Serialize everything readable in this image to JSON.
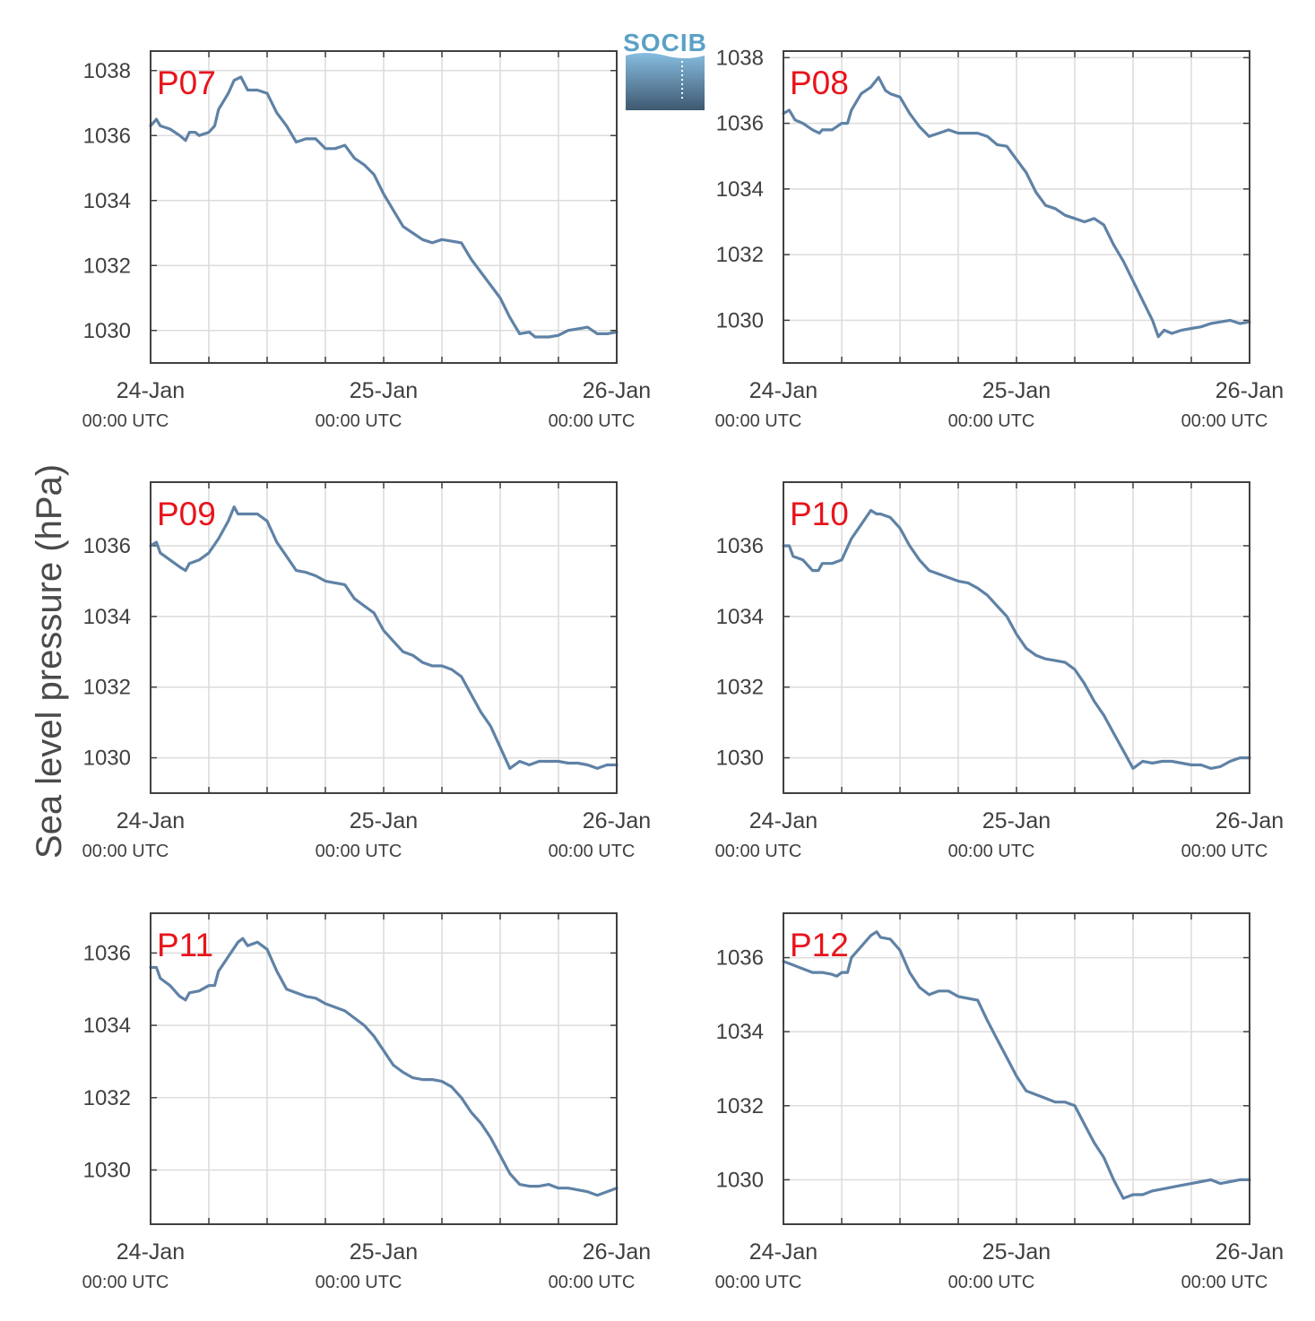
{
  "figure": {
    "ylabel": "Sea level pressure (hPa)",
    "logo_text": "SOCIB"
  },
  "colors": {
    "line": "#5f82a6",
    "label": "#e8141c",
    "grid": "#dcdcdc",
    "axis": "#404040",
    "logo_text": "#5aa0c6",
    "logo_top": "#86bde0",
    "logo_bottom": "#3f5870"
  },
  "chart_data": [
    {
      "type": "line",
      "label": "P07",
      "xlim": [
        0,
        48
      ],
      "ylim": [
        1029,
        1038.6
      ],
      "yticks": [
        1030,
        1032,
        1034,
        1036,
        1038
      ],
      "xticks": [
        {
          "value": 0,
          "date": "24-Jan",
          "time": "00:00 UTC"
        },
        {
          "value": 24,
          "date": "25-Jan",
          "time": "00:00 UTC"
        },
        {
          "value": 48,
          "date": "26-Jan",
          "time": "00:00 UTC"
        }
      ],
      "minor_xticks": [
        6,
        12,
        18,
        30,
        36,
        42
      ],
      "x": [
        0,
        0.6,
        1,
        2,
        3,
        3.6,
        4,
        4.6,
        5,
        6,
        6.6,
        7,
        8,
        8.6,
        9.3,
        10,
        11,
        12,
        13,
        14,
        15,
        16,
        17,
        18,
        19,
        20,
        21,
        22,
        23,
        24,
        25,
        26,
        27,
        28,
        29,
        30,
        31,
        32,
        33,
        34,
        35,
        36,
        37,
        38,
        39,
        39.6,
        40,
        41,
        42,
        43,
        44,
        45,
        46,
        47,
        48
      ],
      "y": [
        1036.3,
        1036.5,
        1036.3,
        1036.2,
        1036.0,
        1035.85,
        1036.1,
        1036.1,
        1036.0,
        1036.1,
        1036.3,
        1036.8,
        1037.3,
        1037.7,
        1037.8,
        1037.4,
        1037.4,
        1037.3,
        1036.7,
        1036.3,
        1035.8,
        1035.9,
        1035.9,
        1035.6,
        1035.6,
        1035.7,
        1035.3,
        1035.1,
        1034.8,
        1034.2,
        1033.7,
        1033.2,
        1033.0,
        1032.8,
        1032.7,
        1032.8,
        1032.75,
        1032.7,
        1032.2,
        1031.8,
        1031.4,
        1031.0,
        1030.4,
        1029.9,
        1029.95,
        1029.8,
        1029.8,
        1029.8,
        1029.85,
        1030.0,
        1030.05,
        1030.1,
        1029.9,
        1029.9,
        1029.95
      ]
    },
    {
      "type": "line",
      "label": "P08",
      "xlim": [
        0,
        48
      ],
      "ylim": [
        1028.7,
        1038.2
      ],
      "yticks": [
        1030,
        1032,
        1034,
        1036,
        1038
      ],
      "xticks": [
        {
          "value": 0,
          "date": "24-Jan",
          "time": "00:00 UTC"
        },
        {
          "value": 24,
          "date": "25-Jan",
          "time": "00:00 UTC"
        },
        {
          "value": 48,
          "date": "26-Jan",
          "time": "00:00 UTC"
        }
      ],
      "minor_xticks": [
        6,
        12,
        18,
        30,
        36,
        42
      ],
      "x": [
        0,
        0.6,
        1.2,
        2,
        3,
        3.7,
        4,
        5,
        6,
        6.6,
        7,
        8,
        9,
        9.8,
        10.5,
        11,
        12,
        13,
        14,
        15,
        16,
        17,
        18,
        19,
        20,
        21,
        22,
        23,
        24,
        25,
        26,
        27,
        28,
        29,
        30,
        31,
        32,
        33,
        34,
        35,
        36,
        37,
        38,
        38.6,
        39.2,
        40,
        41,
        42,
        43,
        44,
        45,
        46,
        47,
        48
      ],
      "y": [
        1036.3,
        1036.4,
        1036.1,
        1036.0,
        1035.8,
        1035.7,
        1035.8,
        1035.8,
        1036.0,
        1036.0,
        1036.4,
        1036.9,
        1037.1,
        1037.4,
        1037.0,
        1036.9,
        1036.8,
        1036.3,
        1035.9,
        1035.6,
        1035.7,
        1035.8,
        1035.7,
        1035.7,
        1035.7,
        1035.6,
        1035.35,
        1035.3,
        1034.9,
        1034.5,
        1033.9,
        1033.5,
        1033.4,
        1033.2,
        1033.1,
        1033.0,
        1033.1,
        1032.9,
        1032.3,
        1031.8,
        1031.2,
        1030.6,
        1030.0,
        1029.5,
        1029.7,
        1029.6,
        1029.7,
        1029.75,
        1029.8,
        1029.9,
        1029.95,
        1030.0,
        1029.9,
        1029.95
      ]
    },
    {
      "type": "line",
      "label": "P09",
      "xlim": [
        0,
        48
      ],
      "ylim": [
        1029,
        1037.8
      ],
      "yticks": [
        1030,
        1032,
        1034,
        1036
      ],
      "xticks": [
        {
          "value": 0,
          "date": "24-Jan",
          "time": "00:00 UTC"
        },
        {
          "value": 24,
          "date": "25-Jan",
          "time": "00:00 UTC"
        },
        {
          "value": 48,
          "date": "26-Jan",
          "time": "00:00 UTC"
        }
      ],
      "minor_xticks": [
        6,
        12,
        18,
        30,
        36,
        42
      ],
      "x": [
        0,
        0.6,
        1,
        2,
        3,
        3.6,
        4,
        5,
        6,
        7,
        8,
        8.6,
        9,
        10,
        11,
        12,
        13,
        14,
        15,
        16,
        17,
        18,
        19,
        20,
        21,
        22,
        23,
        24,
        25,
        26,
        27,
        28,
        29,
        30,
        31,
        32,
        33,
        34,
        35,
        36,
        37,
        38,
        39,
        40,
        41,
        42,
        43,
        44,
        45,
        46,
        47,
        48
      ],
      "y": [
        1036.0,
        1036.1,
        1035.8,
        1035.6,
        1035.4,
        1035.3,
        1035.5,
        1035.6,
        1035.8,
        1036.2,
        1036.7,
        1037.1,
        1036.9,
        1036.9,
        1036.9,
        1036.7,
        1036.1,
        1035.7,
        1035.3,
        1035.25,
        1035.15,
        1035.0,
        1034.95,
        1034.9,
        1034.5,
        1034.3,
        1034.1,
        1033.6,
        1033.3,
        1033.0,
        1032.9,
        1032.7,
        1032.6,
        1032.6,
        1032.5,
        1032.3,
        1031.8,
        1031.3,
        1030.9,
        1030.3,
        1029.7,
        1029.9,
        1029.8,
        1029.9,
        1029.9,
        1029.9,
        1029.85,
        1029.85,
        1029.8,
        1029.7,
        1029.8,
        1029.8
      ]
    },
    {
      "type": "line",
      "label": "P10",
      "xlim": [
        0,
        48
      ],
      "ylim": [
        1029,
        1037.8
      ],
      "yticks": [
        1030,
        1032,
        1034,
        1036
      ],
      "xticks": [
        {
          "value": 0,
          "date": "24-Jan",
          "time": "00:00 UTC"
        },
        {
          "value": 24,
          "date": "25-Jan",
          "time": "00:00 UTC"
        },
        {
          "value": 48,
          "date": "26-Jan",
          "time": "00:00 UTC"
        }
      ],
      "minor_xticks": [
        6,
        12,
        18,
        30,
        36,
        42
      ],
      "x": [
        0,
        0.6,
        1,
        2,
        3,
        3.6,
        4,
        5,
        6,
        7,
        8,
        9,
        9.6,
        10,
        11,
        12,
        13,
        14,
        15,
        16,
        17,
        18,
        19,
        20,
        21,
        22,
        23,
        24,
        25,
        26,
        27,
        28,
        29,
        30,
        31,
        32,
        33,
        34,
        35,
        36,
        37,
        38,
        39,
        40,
        41,
        42,
        43,
        44,
        45,
        46,
        47,
        48
      ],
      "y": [
        1036.0,
        1036.0,
        1035.7,
        1035.6,
        1035.3,
        1035.3,
        1035.5,
        1035.5,
        1035.6,
        1036.2,
        1036.6,
        1037.0,
        1036.9,
        1036.9,
        1036.8,
        1036.5,
        1036.0,
        1035.6,
        1035.3,
        1035.2,
        1035.1,
        1035.0,
        1034.95,
        1034.8,
        1034.6,
        1034.3,
        1034.0,
        1033.5,
        1033.1,
        1032.9,
        1032.8,
        1032.75,
        1032.7,
        1032.5,
        1032.1,
        1031.6,
        1031.2,
        1030.7,
        1030.2,
        1029.7,
        1029.9,
        1029.85,
        1029.9,
        1029.9,
        1029.85,
        1029.8,
        1029.8,
        1029.7,
        1029.75,
        1029.9,
        1030.0,
        1030.0
      ]
    },
    {
      "type": "line",
      "label": "P11",
      "xlim": [
        0,
        48
      ],
      "ylim": [
        1028.5,
        1037.1
      ],
      "yticks": [
        1030,
        1032,
        1034,
        1036
      ],
      "xticks": [
        {
          "value": 0,
          "date": "24-Jan",
          "time": "00:00 UTC"
        },
        {
          "value": 24,
          "date": "25-Jan",
          "time": "00:00 UTC"
        },
        {
          "value": 48,
          "date": "26-Jan",
          "time": "00:00 UTC"
        }
      ],
      "minor_xticks": [
        6,
        12,
        18,
        30,
        36,
        42
      ],
      "x": [
        0,
        0.6,
        1,
        2,
        3,
        3.6,
        4,
        5,
        6,
        6.6,
        7,
        8,
        9,
        9.5,
        10,
        11,
        12,
        13,
        14,
        15,
        16,
        17,
        18,
        19,
        20,
        21,
        22,
        23,
        24,
        25,
        26,
        27,
        28,
        29,
        30,
        31,
        32,
        33,
        34,
        35,
        36,
        37,
        38,
        39,
        40,
        41,
        42,
        43,
        44,
        45,
        46,
        47,
        48
      ],
      "y": [
        1035.6,
        1035.6,
        1035.3,
        1035.1,
        1034.8,
        1034.7,
        1034.9,
        1034.95,
        1035.1,
        1035.1,
        1035.5,
        1035.9,
        1036.3,
        1036.4,
        1036.2,
        1036.3,
        1036.1,
        1035.5,
        1035.0,
        1034.9,
        1034.8,
        1034.75,
        1034.6,
        1034.5,
        1034.4,
        1034.2,
        1034.0,
        1033.7,
        1033.3,
        1032.9,
        1032.7,
        1032.55,
        1032.5,
        1032.5,
        1032.45,
        1032.3,
        1032.0,
        1031.6,
        1031.3,
        1030.9,
        1030.4,
        1029.9,
        1029.6,
        1029.55,
        1029.55,
        1029.6,
        1029.5,
        1029.5,
        1029.45,
        1029.4,
        1029.3,
        1029.4,
        1029.5
      ]
    },
    {
      "type": "line",
      "label": "P12",
      "xlim": [
        0,
        48
      ],
      "ylim": [
        1028.8,
        1037.2
      ],
      "yticks": [
        1030,
        1032,
        1034,
        1036
      ],
      "xticks": [
        {
          "value": 0,
          "date": "24-Jan",
          "time": "00:00 UTC"
        },
        {
          "value": 24,
          "date": "25-Jan",
          "time": "00:00 UTC"
        },
        {
          "value": 48,
          "date": "26-Jan",
          "time": "00:00 UTC"
        }
      ],
      "minor_xticks": [
        6,
        12,
        18,
        30,
        36,
        42
      ],
      "x": [
        0,
        1,
        2,
        3,
        4,
        5,
        5.5,
        6,
        6.6,
        7,
        8,
        9,
        9.6,
        10,
        11,
        12,
        13,
        14,
        15,
        16,
        17,
        18,
        19,
        20,
        21,
        22,
        23,
        24,
        25,
        26,
        27,
        28,
        29,
        30,
        31,
        32,
        33,
        34,
        35,
        36,
        37,
        38,
        39,
        40,
        41,
        42,
        43,
        44,
        45,
        46,
        47,
        48
      ],
      "y": [
        1035.9,
        1035.8,
        1035.7,
        1035.6,
        1035.6,
        1035.55,
        1035.5,
        1035.6,
        1035.6,
        1036.0,
        1036.3,
        1036.6,
        1036.7,
        1036.55,
        1036.5,
        1036.2,
        1035.6,
        1035.2,
        1035.0,
        1035.1,
        1035.1,
        1034.95,
        1034.9,
        1034.85,
        1034.3,
        1033.8,
        1033.3,
        1032.8,
        1032.4,
        1032.3,
        1032.2,
        1032.1,
        1032.1,
        1032.0,
        1031.5,
        1031.0,
        1030.6,
        1030.0,
        1029.5,
        1029.6,
        1029.6,
        1029.7,
        1029.75,
        1029.8,
        1029.85,
        1029.9,
        1029.95,
        1030.0,
        1029.9,
        1029.95,
        1030.0,
        1030.0
      ]
    }
  ]
}
